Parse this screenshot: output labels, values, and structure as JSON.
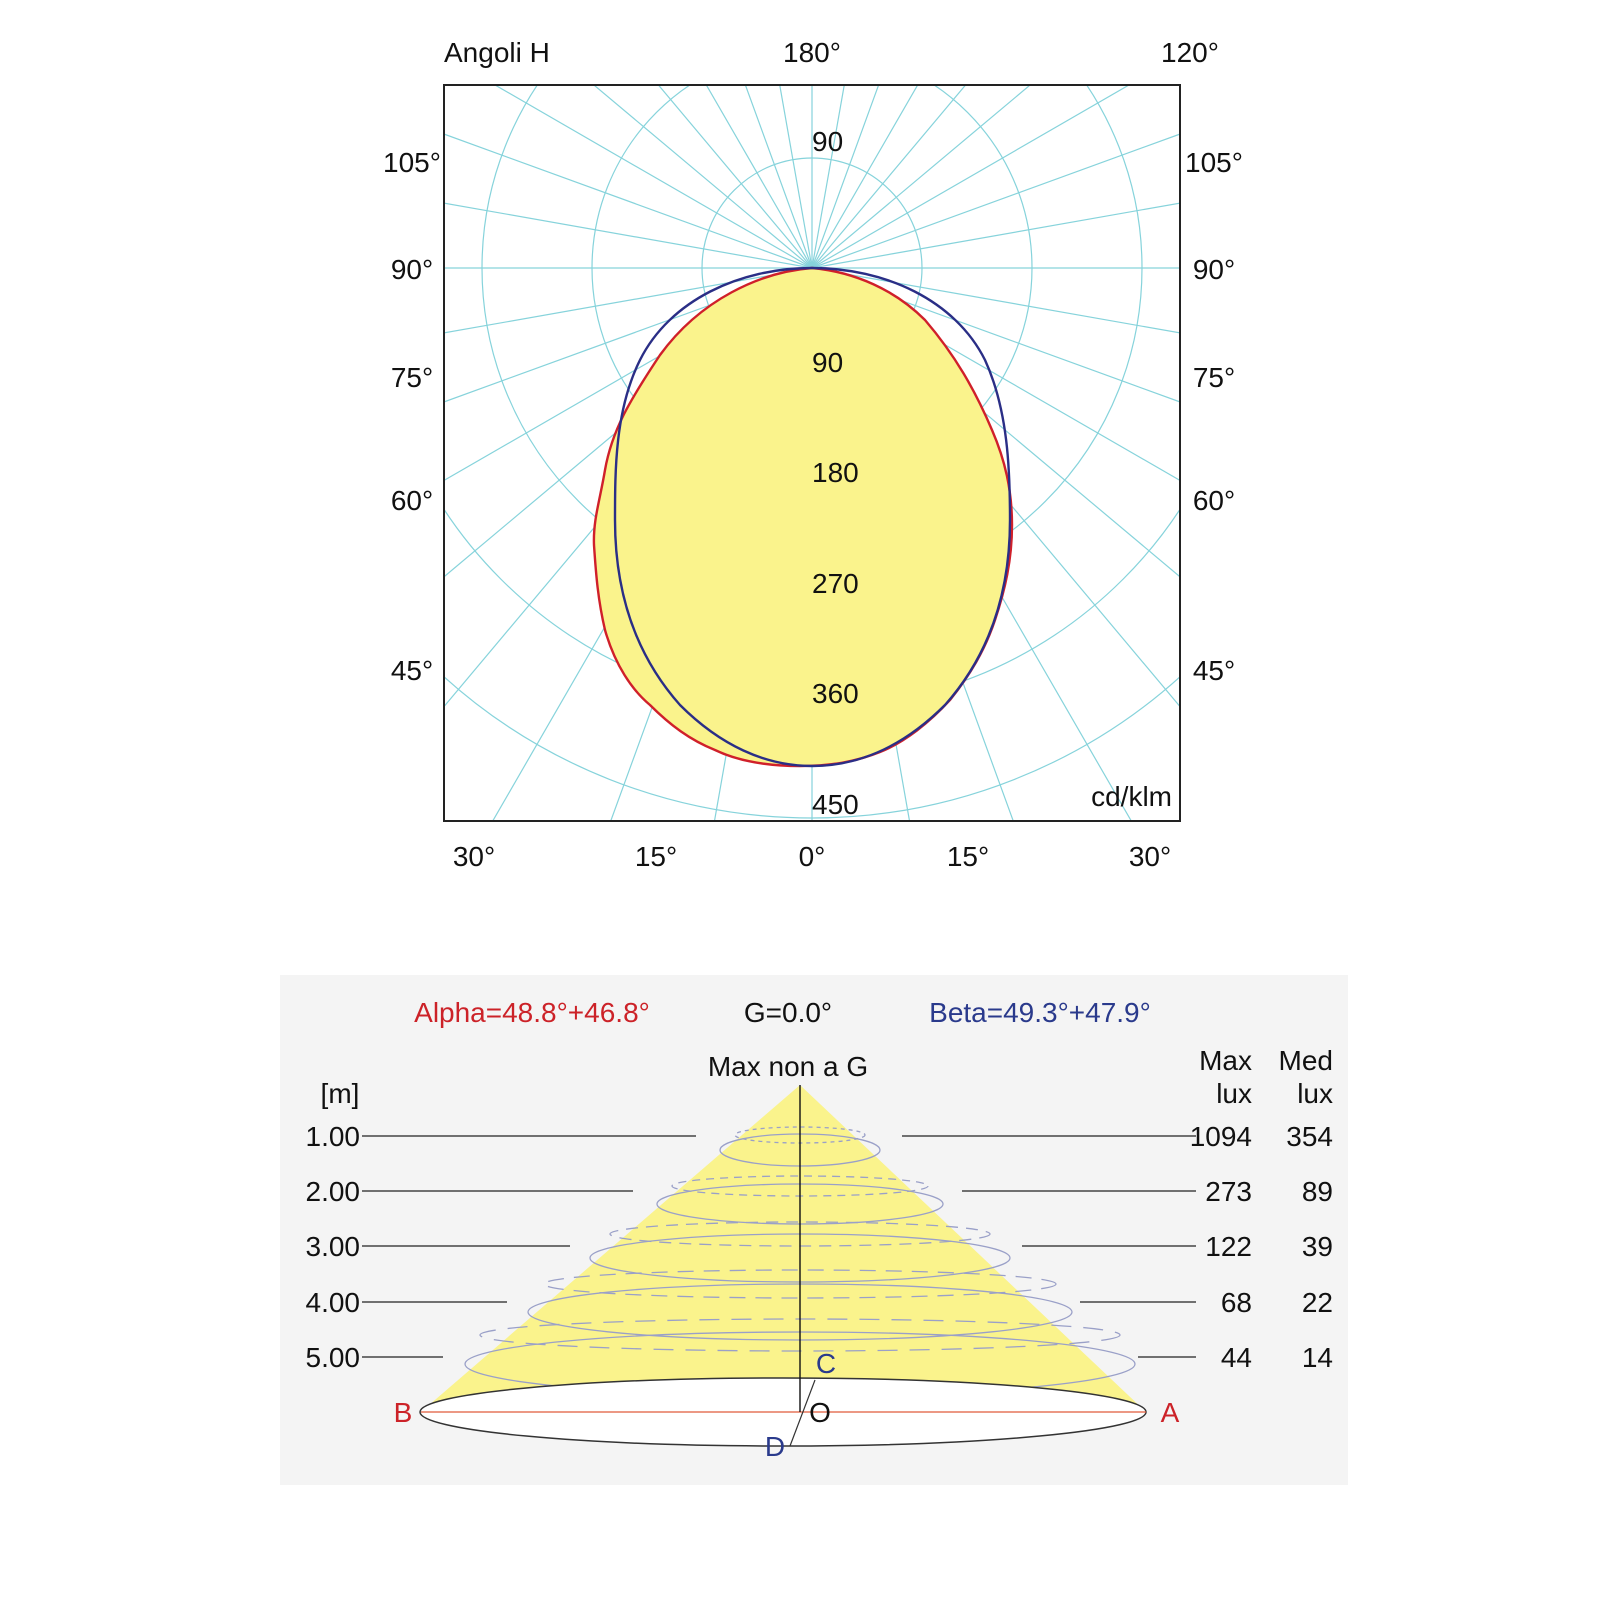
{
  "polar_diagram": {
    "header": {
      "left": "Angoli H",
      "center": "180°",
      "right": "120°"
    },
    "side_angle_labels": [
      "105°",
      "90°",
      "75°",
      "60°",
      "45°"
    ],
    "bottom_angle_labels": [
      "30°",
      "15°",
      "0°",
      "15°",
      "30°"
    ],
    "upper_ring_label": "90",
    "ring_labels": [
      "90",
      "180",
      "270",
      "360",
      "450"
    ],
    "unit": "cd/klm",
    "colors": {
      "c0_curve": "#d0202a",
      "c90_curve": "#2a2e86",
      "fill": "#faf38c",
      "grid": "#86d3db"
    }
  },
  "cone_diagram": {
    "alpha": "Alpha=48.8°+46.8°",
    "g": "G=0.0°",
    "beta": "Beta=49.3°+47.9°",
    "top_label": "Max non a G",
    "unit_label": "[m]",
    "max_header": [
      "Max",
      "lux"
    ],
    "med_header": [
      "Med",
      "lux"
    ],
    "rows": [
      {
        "height": "1.00",
        "max": "1094",
        "med": "354"
      },
      {
        "height": "2.00",
        "max": "273",
        "med": "89"
      },
      {
        "height": "3.00",
        "max": "122",
        "med": "39"
      },
      {
        "height": "4.00",
        "max": "68",
        "med": "22"
      },
      {
        "height": "5.00",
        "max": "44",
        "med": "14"
      }
    ],
    "points": {
      "a": "A",
      "b": "B",
      "c": "C",
      "d": "D",
      "o": "O"
    },
    "colors": {
      "alpha": "#cc2228",
      "beta": "#2a3a8c",
      "cone": "#faf38c",
      "panel": "#f4f4f4"
    }
  }
}
